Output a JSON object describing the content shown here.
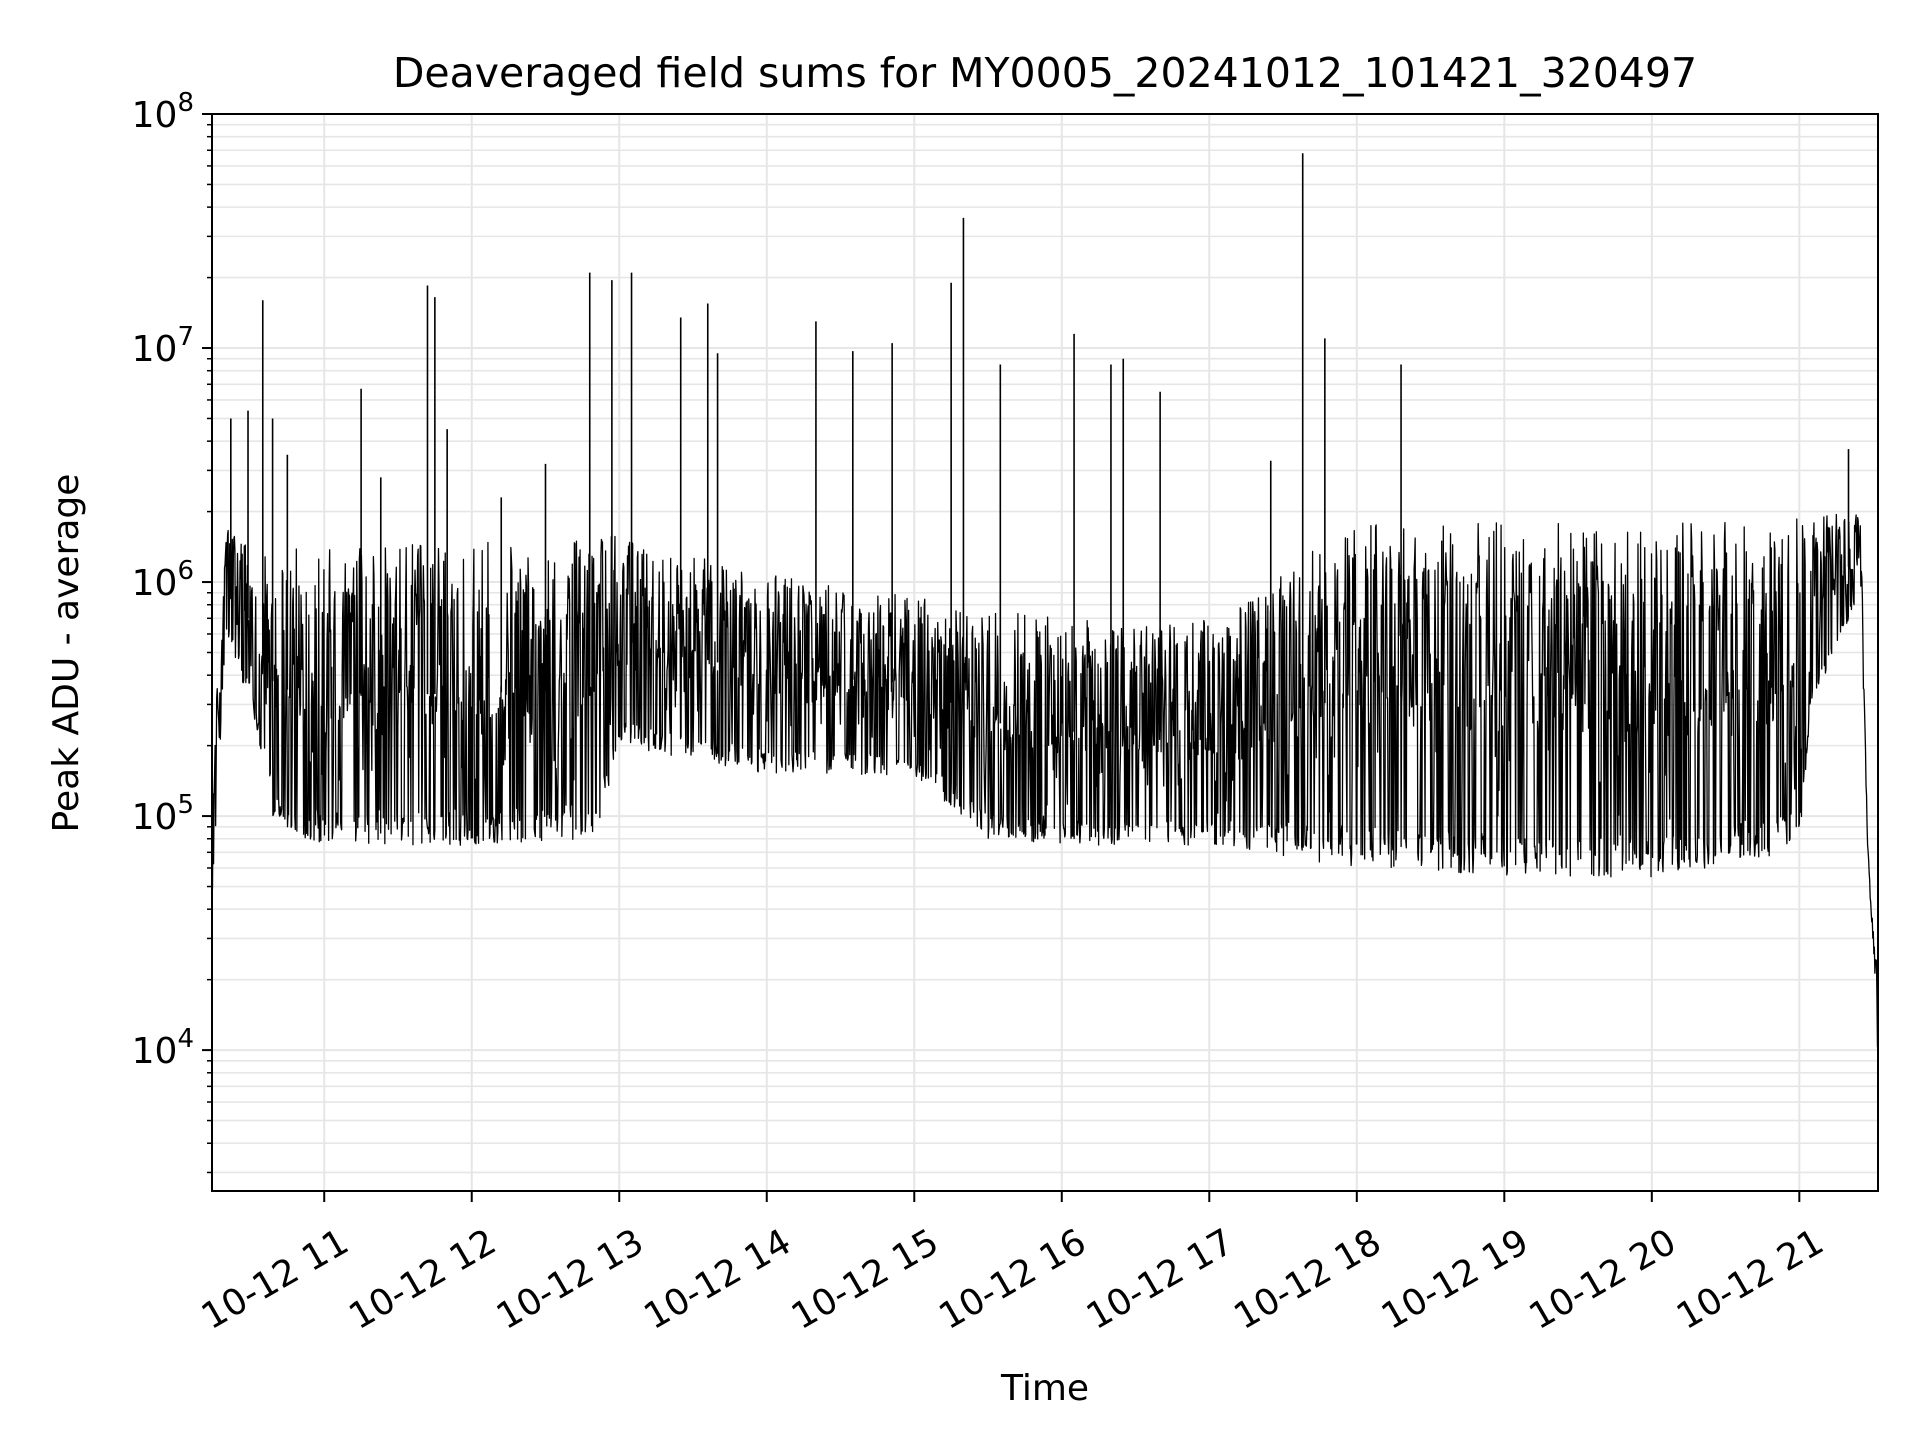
{
  "chart_data": {
    "type": "line",
    "title": "Deaveraged field sums for MY0005_20241012_101421_320497",
    "xlabel": "Time",
    "ylabel": "Peak ADU - average",
    "yscale": "log",
    "ylim": [
      2500,
      100000000
    ],
    "xlim": [
      "2024-10-12 10:14:21",
      "2024-10-12 21:32:00"
    ],
    "grid": true,
    "line_color": "#000000",
    "grid_color": "#e6e6e6",
    "x_ticks": [
      {
        "value": "2024-10-12 11:00",
        "label": "10-12 11"
      },
      {
        "value": "2024-10-12 12:00",
        "label": "10-12 12"
      },
      {
        "value": "2024-10-12 13:00",
        "label": "10-12 13"
      },
      {
        "value": "2024-10-12 14:00",
        "label": "10-12 14"
      },
      {
        "value": "2024-10-12 15:00",
        "label": "10-12 15"
      },
      {
        "value": "2024-10-12 16:00",
        "label": "10-12 16"
      },
      {
        "value": "2024-10-12 17:00",
        "label": "10-12 17"
      },
      {
        "value": "2024-10-12 18:00",
        "label": "10-12 18"
      },
      {
        "value": "2024-10-12 19:00",
        "label": "10-12 19"
      },
      {
        "value": "2024-10-12 20:00",
        "label": "10-12 20"
      },
      {
        "value": "2024-10-12 21:00",
        "label": "10-12 21"
      }
    ],
    "y_ticks": [
      {
        "value": 10000,
        "base": "10",
        "exp": "4"
      },
      {
        "value": 100000,
        "base": "10",
        "exp": "5"
      },
      {
        "value": 1000000,
        "base": "10",
        "exp": "6"
      },
      {
        "value": 10000000,
        "base": "10",
        "exp": "7"
      },
      {
        "value": 100000000,
        "base": "10",
        "exp": "8"
      }
    ],
    "envelope": [
      {
        "t": "2024-10-12 10:14:21",
        "low": 45000,
        "high": 140000
      },
      {
        "t": "2024-10-12 10:20",
        "low": 600000,
        "high": 1800000
      },
      {
        "t": "2024-10-12 10:30",
        "low": 300000,
        "high": 1500000
      },
      {
        "t": "2024-10-12 10:40",
        "low": 90000,
        "high": 1400000
      },
      {
        "t": "2024-10-12 11:00",
        "low": 75000,
        "high": 1400000
      },
      {
        "t": "2024-10-12 12:00",
        "low": 75000,
        "high": 1500000
      },
      {
        "t": "2024-10-12 12:50",
        "low": 80000,
        "high": 1500000
      },
      {
        "t": "2024-10-12 13:00",
        "low": 200000,
        "high": 1600000
      },
      {
        "t": "2024-10-12 14:00",
        "low": 150000,
        "high": 1100000
      },
      {
        "t": "2024-10-12 15:00",
        "low": 150000,
        "high": 900000
      },
      {
        "t": "2024-10-12 15:30",
        "low": 80000,
        "high": 800000
      },
      {
        "t": "2024-10-12 16:00",
        "low": 75000,
        "high": 700000
      },
      {
        "t": "2024-10-12 17:00",
        "low": 75000,
        "high": 700000
      },
      {
        "t": "2024-10-12 18:00",
        "low": 60000,
        "high": 1800000
      },
      {
        "t": "2024-10-12 19:00",
        "low": 55000,
        "high": 1800000
      },
      {
        "t": "2024-10-12 20:00",
        "low": 55000,
        "high": 1800000
      },
      {
        "t": "2024-10-12 21:00",
        "low": 70000,
        "high": 1900000
      },
      {
        "t": "2024-10-12 21:05",
        "low": 300000,
        "high": 1900000
      },
      {
        "t": "2024-10-12 21:25",
        "low": 900000,
        "high": 2000000
      },
      {
        "t": "2024-10-12 21:28",
        "low": 60000,
        "high": 65000
      },
      {
        "t": "2024-10-12 21:32",
        "low": 9000,
        "high": 20000
      }
    ],
    "spikes": [
      {
        "t": "2024-10-12 10:22",
        "y": 5000000
      },
      {
        "t": "2024-10-12 10:29",
        "y": 5400000
      },
      {
        "t": "2024-10-12 10:35",
        "y": 16000000
      },
      {
        "t": "2024-10-12 10:39",
        "y": 5000000
      },
      {
        "t": "2024-10-12 10:45",
        "y": 3500000
      },
      {
        "t": "2024-10-12 11:15",
        "y": 6700000
      },
      {
        "t": "2024-10-12 11:23",
        "y": 2800000
      },
      {
        "t": "2024-10-12 11:42",
        "y": 18500000
      },
      {
        "t": "2024-10-12 11:45",
        "y": 16500000
      },
      {
        "t": "2024-10-12 11:50",
        "y": 4500000
      },
      {
        "t": "2024-10-12 12:12",
        "y": 2300000
      },
      {
        "t": "2024-10-12 12:30",
        "y": 3200000
      },
      {
        "t": "2024-10-12 12:48",
        "y": 21000000
      },
      {
        "t": "2024-10-12 12:57",
        "y": 19500000
      },
      {
        "t": "2024-10-12 13:05",
        "y": 21000000
      },
      {
        "t": "2024-10-12 13:25",
        "y": 13500000
      },
      {
        "t": "2024-10-12 13:36",
        "y": 15500000
      },
      {
        "t": "2024-10-12 13:40",
        "y": 9500000
      },
      {
        "t": "2024-10-12 14:20",
        "y": 13000000
      },
      {
        "t": "2024-10-12 14:35",
        "y": 9700000
      },
      {
        "t": "2024-10-12 14:51",
        "y": 10500000
      },
      {
        "t": "2024-10-12 15:15",
        "y": 19000000
      },
      {
        "t": "2024-10-12 15:20",
        "y": 36000000
      },
      {
        "t": "2024-10-12 15:35",
        "y": 8500000
      },
      {
        "t": "2024-10-12 16:05",
        "y": 11500000
      },
      {
        "t": "2024-10-12 16:20",
        "y": 8500000
      },
      {
        "t": "2024-10-12 16:25",
        "y": 9000000
      },
      {
        "t": "2024-10-12 16:40",
        "y": 6500000
      },
      {
        "t": "2024-10-12 17:25",
        "y": 3300000
      },
      {
        "t": "2024-10-12 17:38",
        "y": 68000000
      },
      {
        "t": "2024-10-12 17:47",
        "y": 11000000
      },
      {
        "t": "2024-10-12 18:18",
        "y": 8500000
      },
      {
        "t": "2024-10-12 21:20",
        "y": 3700000
      }
    ]
  }
}
